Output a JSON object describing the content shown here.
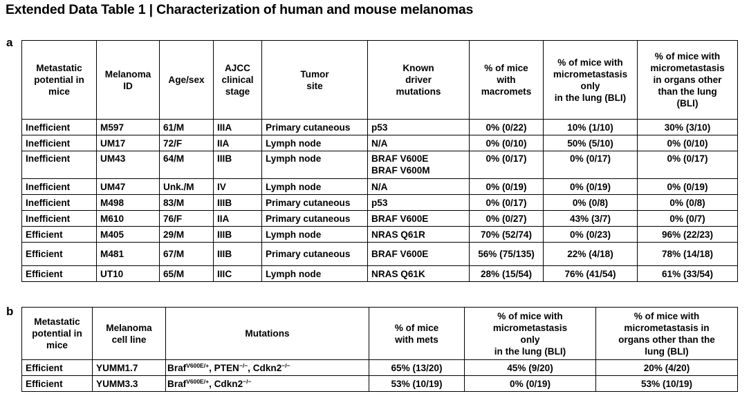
{
  "title": "Extended Data Table 1 | Characterization of human and mouse melanomas",
  "panel_a": {
    "label": "a",
    "headers": [
      "Metastatic\npotential in\nmice",
      "Melanoma\nID",
      "Age/sex",
      "AJCC\nclinical\nstage",
      "Tumor\nsite",
      "Known\ndriver\nmutations",
      "% of mice\nwith\nmacromets",
      "% of mice with\nmicrometastasis\nonly\nin the lung (BLI)",
      "% of mice with\nmicrometastasis\nin organs other\nthan the lung\n(BLI)"
    ],
    "rows": [
      [
        "Inefficient",
        "M597",
        "61/M",
        "IIIA",
        "Primary cutaneous",
        "p53",
        "0% (0/22)",
        "10% (1/10)",
        "30% (3/10)"
      ],
      [
        "Inefficient",
        "UM17",
        "72/F",
        "IIA",
        "Lymph node",
        "N/A",
        "0% (0/10)",
        "50% (5/10)",
        "0% (0/10)"
      ],
      [
        "Inefficient",
        "UM43",
        "64/M",
        "IIIB",
        "Lymph node",
        "BRAF V600E\nBRAF V600M",
        "0% (0/17)",
        "0% (0/17)",
        "0% (0/17)"
      ],
      [
        "Inefficient",
        "UM47",
        "Unk./M",
        "IV",
        "Lymph node",
        "N/A",
        "0% (0/19)",
        "0% (0/19)",
        "0% (0/19)"
      ],
      [
        "Inefficient",
        "M498",
        "83/M",
        "IIIB",
        "Primary cutaneous",
        "p53",
        "0% (0/17)",
        "0% (0/8)",
        "0% (0/8)"
      ],
      [
        "Inefficient",
        "M610",
        "76/F",
        "IIA",
        "Primary cutaneous",
        "BRAF V600E",
        "0% (0/27)",
        "43% (3/7)",
        "0% (0/7)"
      ],
      [
        "Efficient",
        "M405",
        "29/M",
        "IIIB",
        "Lymph node",
        "NRAS Q61R",
        "70% (52/74)",
        "0% (0/23)",
        "96% (22/23)"
      ],
      [
        "Efficient",
        "M481",
        "67/M",
        "IIIB",
        "Primary cutaneous",
        "BRAF V600E",
        "56% (75/135)",
        "22% (4/18)",
        "78% (14/18)"
      ],
      [
        "Efficient",
        "UT10",
        "65/M",
        "IIIC",
        "Lymph node",
        "NRAS Q61K",
        "28% (15/54)",
        "76% (41/54)",
        "61% (33/54)"
      ]
    ]
  },
  "panel_b": {
    "label": "b",
    "headers": [
      "Metastatic\npotential in\nmice",
      "Melanoma\ncell line",
      "Mutations",
      "% of mice\nwith mets",
      "% of mice with\nmicrometastasis\nonly\nin the lung (BLI)",
      "% of mice with\nmicrometastasis in\norgans other than the\nlung (BLI)"
    ],
    "rows": [
      {
        "potential": "Efficient",
        "line": "YUMM1.7",
        "mutations": [
          {
            "base": "Braf",
            "sup": "V600E/+"
          },
          {
            "base": ", PTEN",
            "sup": "−/−"
          },
          {
            "base": ", Cdkn2",
            "sup": "−/−"
          }
        ],
        "mets": "65% (13/20)",
        "lung": "45% (9/20)",
        "other": "20% (4/20)"
      },
      {
        "potential": "Efficient",
        "line": "YUMM3.3",
        "mutations": [
          {
            "base": "Braf",
            "sup": "V600E/+"
          },
          {
            "base": ", Cdkn2",
            "sup": "−/−"
          }
        ],
        "mets": "53% (10/19)",
        "lung": "0% (0/19)",
        "other": "53% (10/19)"
      }
    ]
  }
}
